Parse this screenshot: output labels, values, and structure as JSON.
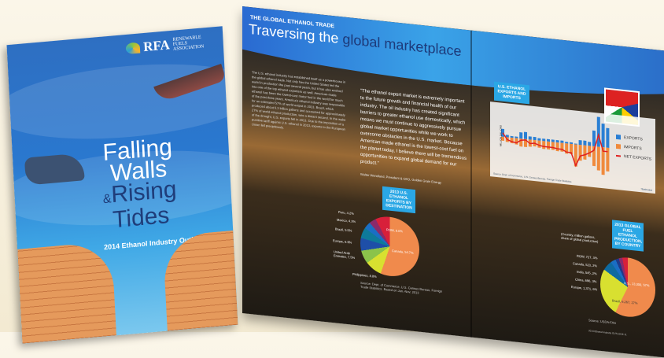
{
  "cover": {
    "logo": "RFA",
    "logo_sub": "RENEWABLE FUELS ASSOCIATION",
    "title_line1": "Falling",
    "title_line2": "Walls",
    "amp": "&",
    "title_line3": "Rising",
    "title_line4": "Tides",
    "subtitle": "2014 Ethanol Industry Outlook"
  },
  "spread": {
    "kicker": "THE GLOBAL ETHANOL TRADE",
    "headline_a": "Traversing the ",
    "headline_b": "global marketplace",
    "body": "The U.S. ethanol industry has established itself as a powerhouse in the global ethanol trade. Not only has the United States led the world in production the past several years, but it has also evolved into one of the top ethanol exporters as well. American-made ethanol has been the lowest-cost motor fuel in the world for much of the past three years. America's ethanol industry was responsible for an estimated 57% of world output in 2013. Brazil, which produced about 6.3 billion gallons and accounted for approximately 27% of world ethanol production, was a distant second. In the wake of the drought, U.S. exports fell in 2013. Due to the imposition of a punitive tariff against U.S. ethanol in 2013, exports to the European Union fell precipitously.",
    "quote": "“The ethanol export market is extremely important to the future growth and financial health of our industry. The oil industry has created significant barriers to greater ethanol use domestically, which means we must continue to aggressively pursue global market opportunities while we work to overcome obstacles in the U.S. market. Because American-made ethanol is the lowest-cost fuel on the planet today, I believe there will be tremendous opportunities to expand global demand for our product.”",
    "attribution": "Walter Wendland, President & CEO, Golden Grain Energy",
    "chart_box": "U.S. ETHANOL EXPORTS AND IMPORTS",
    "chart_ylabel": "MILLION GALLONS",
    "legend": [
      {
        "label": "EXPORTS",
        "color": "#2a7fd4"
      },
      {
        "label": "IMPORTS",
        "color": "#f08a3c"
      },
      {
        "label": "NET EXPORTS",
        "color": "#e02020"
      }
    ],
    "chart_source": "Source: Dept. of Commerce, U.S. Census Bureau, Foreign Trade Statistics",
    "estimated": "*Estimated",
    "pie1_box": "2013 U.S. ETHANOL EXPORTS BY DESTINATION",
    "pie1_labels": [
      "Canada, 54.7%",
      "ROW, 8.0%",
      "Peru, 4.2%",
      "Mexico, 4.3%",
      "Brazil, 5.5%",
      "Europe, 6.9%",
      "United Arab Emirates, 7.5%",
      "Philippines, 8.8%"
    ],
    "pie1_source": "Source: Dept. of Commerce, U.S. Census Bureau, Foreign Trade Statistics. Based on Jan.-Nov. 2013",
    "pie2_box": "2013 GLOBAL FUEL ETHANOL PRODUCTION, BY COUNTRY",
    "pie2_note": "(Country, million gallons, share of global production)",
    "pie2_labels": [
      "U.S., 13,300, 57%",
      "Brazil, 6,267, 27%",
      "Europe, 1,371, 6%",
      "China, 696, 3%",
      "India, 545, 2%",
      "Canada, 523, 2%",
      "ROW, 727, 3%"
    ],
    "pie2_source": "Source: USDA-FAS",
    "footer": "2014 Ethanol Industry OUTLOOK 11"
  }
}
